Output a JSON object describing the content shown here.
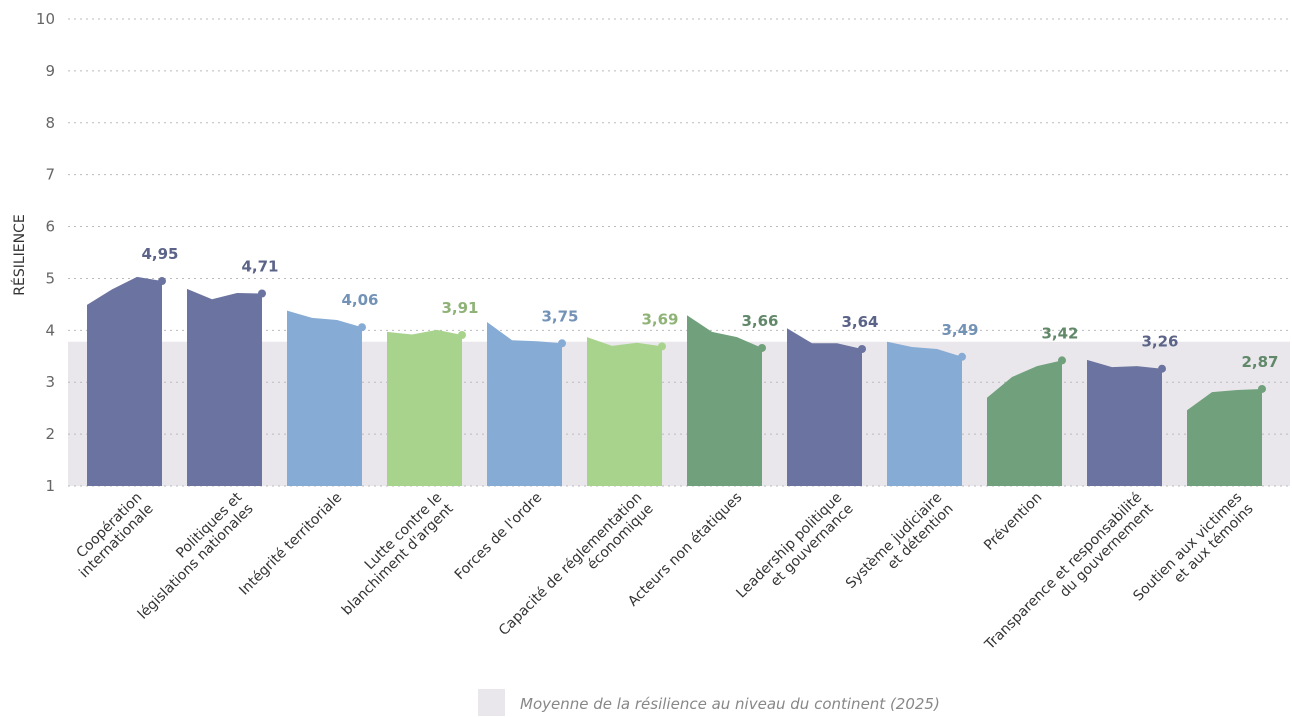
{
  "chart_data": {
    "type": "area-groups",
    "y_label": "RÉSILIENCE",
    "ylim": [
      1,
      10
    ],
    "yticks": [
      1,
      2,
      3,
      4,
      5,
      6,
      7,
      8,
      9,
      10
    ],
    "grid": true,
    "band": {
      "label": "Moyenne de la résilience au niveau du continent (2025)",
      "value": 3.78,
      "color": "#e9e7eb"
    },
    "groups": [
      {
        "category": [
          "Coopération",
          "internationale"
        ],
        "color": "#6b74a0",
        "values": [
          4.49,
          4.79,
          5.03,
          4.95
        ],
        "value_label": "4,95"
      },
      {
        "category": [
          "Politiques et",
          "législations nationales"
        ],
        "color": "#6b74a0",
        "values": [
          4.8,
          4.6,
          4.72,
          4.71
        ],
        "value_label": "4,71"
      },
      {
        "category": [
          "Intégrité territoriale"
        ],
        "color": "#86acd6",
        "values": [
          4.38,
          4.24,
          4.2,
          4.06
        ],
        "value_label": "4,06"
      },
      {
        "category": [
          "Lutte contre le",
          "blanchiment d'argent"
        ],
        "color": "#a8d38c",
        "values": [
          3.97,
          3.92,
          4.01,
          3.91
        ],
        "value_label": "3,91"
      },
      {
        "category": [
          "Forces de l'ordre"
        ],
        "color": "#86acd6",
        "values": [
          4.16,
          3.81,
          3.79,
          3.75
        ],
        "value_label": "3,75"
      },
      {
        "category": [
          "Capacité de réglementation",
          "économique"
        ],
        "color": "#a8d38c",
        "values": [
          3.87,
          3.7,
          3.76,
          3.69
        ],
        "value_label": "3,69"
      },
      {
        "category": [
          "Acteurs non étatiques"
        ],
        "color": "#71a07c",
        "values": [
          4.29,
          3.97,
          3.87,
          3.66
        ],
        "value_label": "3,66"
      },
      {
        "category": [
          "Leadership politique",
          "et gouvernance"
        ],
        "color": "#6b74a0",
        "values": [
          4.04,
          3.75,
          3.75,
          3.64
        ],
        "value_label": "3,64"
      },
      {
        "category": [
          "Système judiciaire",
          "et détention"
        ],
        "color": "#86acd6",
        "values": [
          3.78,
          3.68,
          3.64,
          3.49
        ],
        "value_label": "3,49"
      },
      {
        "category": [
          "Prévention"
        ],
        "color": "#71a07c",
        "values": [
          2.7,
          3.1,
          3.31,
          3.42
        ],
        "value_label": "3,42"
      },
      {
        "category": [
          "Transparence et responsabilité",
          "du gouvernement"
        ],
        "color": "#6b74a0",
        "values": [
          3.43,
          3.29,
          3.31,
          3.26
        ],
        "value_label": "3,26"
      },
      {
        "category": [
          "Soutien aux victimes",
          "et aux témoins"
        ],
        "color": "#71a07c",
        "values": [
          2.46,
          2.81,
          2.85,
          2.87
        ],
        "value_label": "2,87"
      }
    ]
  }
}
